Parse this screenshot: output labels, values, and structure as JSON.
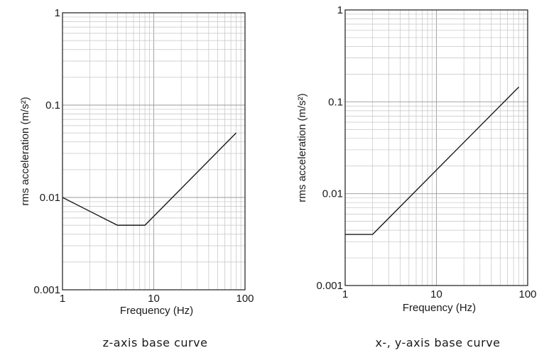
{
  "chart_data": [
    {
      "type": "line",
      "caption": "z-axis base curve",
      "xlabel": "Frequency (Hz)",
      "ylabel": "rms acceleration (m/s²)",
      "xscale": "log",
      "yscale": "log",
      "xlim": [
        1,
        100
      ],
      "ylim": [
        0.001,
        1
      ],
      "grid": true,
      "x_tick_labels": [
        "1",
        "10",
        "100"
      ],
      "y_tick_labels": [
        "0.001",
        "0.01",
        "0.1",
        "1"
      ],
      "series": [
        {
          "x": [
            1,
            4,
            8,
            80
          ],
          "y": [
            0.01,
            0.005,
            0.005,
            0.05
          ]
        }
      ]
    },
    {
      "type": "line",
      "caption": "x-, y-axis base curve",
      "xlabel": "Frequency (Hz)",
      "ylabel": "rms acceleration (m/s²)",
      "xscale": "log",
      "yscale": "log",
      "xlim": [
        1,
        100
      ],
      "ylim": [
        0.001,
        1
      ],
      "grid": true,
      "x_tick_labels": [
        "1",
        "10",
        "100"
      ],
      "y_tick_labels": [
        "0.001",
        "0.01",
        "0.1",
        "1"
      ],
      "series": [
        {
          "x": [
            1,
            2,
            80
          ],
          "y": [
            0.0036,
            0.0036,
            0.145
          ]
        }
      ]
    }
  ]
}
